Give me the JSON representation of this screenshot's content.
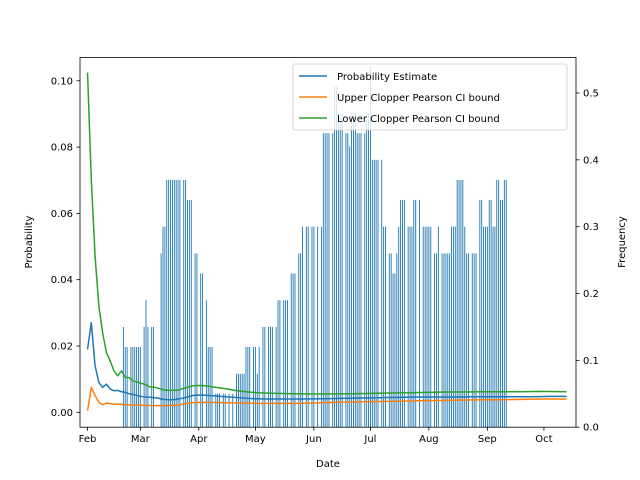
{
  "chart_data": {
    "type": "line+bar",
    "xlabel": "Date",
    "ylabel_left": "Probability",
    "ylabel_right": "Frequency",
    "x_ticks": [
      "Feb",
      "Mar",
      "Apr",
      "May",
      "Jun",
      "Jul",
      "Aug",
      "Sep",
      "Oct"
    ],
    "y_left_ticks": [
      "0.00",
      "0.02",
      "0.04",
      "0.06",
      "0.08",
      "0.10"
    ],
    "y_right_ticks": [
      "0.0",
      "0.1",
      "0.2",
      "0.3",
      "0.4",
      "0.5"
    ],
    "ylim_left": [
      -0.0045,
      0.107
    ],
    "ylim_right": [
      0,
      0.553
    ],
    "xlim_days": [
      -4,
      259
    ],
    "legend_position": "upper right",
    "series": [
      {
        "name": "Probability Estimate",
        "color": "#1f77b4",
        "points": [
          [
            0,
            0.019
          ],
          [
            2,
            0.027
          ],
          [
            4,
            0.014
          ],
          [
            6,
            0.009
          ],
          [
            8,
            0.0075
          ],
          [
            10,
            0.0085
          ],
          [
            12,
            0.007
          ],
          [
            14,
            0.0065
          ],
          [
            16,
            0.0066
          ],
          [
            18,
            0.0062
          ],
          [
            20,
            0.006
          ],
          [
            22,
            0.0056
          ],
          [
            25,
            0.0053
          ],
          [
            28,
            0.0048
          ],
          [
            31,
            0.0046
          ],
          [
            34,
            0.0045
          ],
          [
            37,
            0.0043
          ],
          [
            40,
            0.0039
          ],
          [
            44,
            0.0038
          ],
          [
            47,
            0.0039
          ],
          [
            50,
            0.0042
          ],
          [
            53,
            0.0046
          ],
          [
            56,
            0.0051
          ],
          [
            60,
            0.0052
          ],
          [
            64,
            0.0051
          ],
          [
            68,
            0.0049
          ],
          [
            73,
            0.0047
          ],
          [
            78,
            0.0045
          ],
          [
            83,
            0.0043
          ],
          [
            88,
            0.0041
          ],
          [
            95,
            0.004
          ],
          [
            105,
            0.004
          ],
          [
            115,
            0.004
          ],
          [
            125,
            0.0041
          ],
          [
            135,
            0.0042
          ],
          [
            145,
            0.0043
          ],
          [
            155,
            0.0044
          ],
          [
            165,
            0.0045
          ],
          [
            175,
            0.0046
          ],
          [
            185,
            0.0046
          ],
          [
            195,
            0.0046
          ],
          [
            205,
            0.0047
          ],
          [
            215,
            0.0047
          ],
          [
            225,
            0.0047
          ],
          [
            235,
            0.0047
          ],
          [
            245,
            0.0048
          ],
          [
            254,
            0.0048
          ]
        ]
      },
      {
        "name": "Upper Clopper Pearson CI bound",
        "color": "#ff7f0e",
        "points": [
          [
            0,
            0.0005
          ],
          [
            2,
            0.0075
          ],
          [
            4,
            0.005
          ],
          [
            6,
            0.003
          ],
          [
            8,
            0.0023
          ],
          [
            10,
            0.0028
          ],
          [
            12,
            0.0026
          ],
          [
            14,
            0.0024
          ],
          [
            16,
            0.0025
          ],
          [
            18,
            0.0024
          ],
          [
            20,
            0.0023
          ],
          [
            24,
            0.0022
          ],
          [
            30,
            0.0021
          ],
          [
            36,
            0.002
          ],
          [
            42,
            0.002
          ],
          [
            48,
            0.0022
          ],
          [
            52,
            0.0026
          ],
          [
            56,
            0.0029
          ],
          [
            60,
            0.003
          ],
          [
            66,
            0.003
          ],
          [
            72,
            0.0029
          ],
          [
            80,
            0.0028
          ],
          [
            90,
            0.0027
          ],
          [
            100,
            0.0027
          ],
          [
            110,
            0.0027
          ],
          [
            120,
            0.0028
          ],
          [
            130,
            0.003
          ],
          [
            140,
            0.0031
          ],
          [
            150,
            0.0032
          ],
          [
            160,
            0.0033
          ],
          [
            170,
            0.0034
          ],
          [
            180,
            0.0035
          ],
          [
            190,
            0.0036
          ],
          [
            200,
            0.0037
          ],
          [
            210,
            0.0038
          ],
          [
            220,
            0.0038
          ],
          [
            230,
            0.0039
          ],
          [
            240,
            0.004
          ],
          [
            254,
            0.004
          ]
        ]
      },
      {
        "name": "Lower Clopper Pearson CI bound",
        "color": "#2ca02c",
        "points": [
          [
            0,
            0.1025
          ],
          [
            2,
            0.07
          ],
          [
            4,
            0.047
          ],
          [
            6,
            0.032
          ],
          [
            8,
            0.024
          ],
          [
            10,
            0.018
          ],
          [
            12,
            0.0155
          ],
          [
            14,
            0.0125
          ],
          [
            16,
            0.011
          ],
          [
            18,
            0.0125
          ],
          [
            20,
            0.0105
          ],
          [
            22,
            0.0105
          ],
          [
            24,
            0.0095
          ],
          [
            26,
            0.0092
          ],
          [
            28,
            0.0088
          ],
          [
            30,
            0.0085
          ],
          [
            33,
            0.0077
          ],
          [
            36,
            0.0075
          ],
          [
            40,
            0.0068
          ],
          [
            44,
            0.0066
          ],
          [
            48,
            0.0067
          ],
          [
            52,
            0.0074
          ],
          [
            56,
            0.008
          ],
          [
            60,
            0.0081
          ],
          [
            64,
            0.0079
          ],
          [
            68,
            0.0075
          ],
          [
            72,
            0.0072
          ],
          [
            78,
            0.0066
          ],
          [
            84,
            0.0062
          ],
          [
            90,
            0.0059
          ],
          [
            100,
            0.0057
          ],
          [
            110,
            0.0056
          ],
          [
            120,
            0.0055
          ],
          [
            130,
            0.0055
          ],
          [
            140,
            0.0056
          ],
          [
            150,
            0.0057
          ],
          [
            160,
            0.0058
          ],
          [
            170,
            0.0059
          ],
          [
            180,
            0.006
          ],
          [
            190,
            0.0061
          ],
          [
            200,
            0.0061
          ],
          [
            210,
            0.0062
          ],
          [
            220,
            0.0062
          ],
          [
            230,
            0.0062
          ],
          [
            240,
            0.0063
          ],
          [
            254,
            0.0062
          ]
        ]
      }
    ],
    "frequency_bars": {
      "color": "#1f77b4",
      "values": [
        [
          19,
          0.15
        ],
        [
          20,
          0.12
        ],
        [
          21,
          0.12
        ],
        [
          23,
          0.12
        ],
        [
          24,
          0.12
        ],
        [
          25,
          0.12
        ],
        [
          26,
          0.12
        ],
        [
          27,
          0.12
        ],
        [
          28,
          0.12
        ],
        [
          30,
          0.15
        ],
        [
          31,
          0.19
        ],
        [
          32,
          0.15
        ],
        [
          34,
          0.15
        ],
        [
          35,
          0.15
        ],
        [
          39,
          0.26
        ],
        [
          40,
          0.3
        ],
        [
          41,
          0.3
        ],
        [
          42,
          0.37
        ],
        [
          43,
          0.37
        ],
        [
          44,
          0.37
        ],
        [
          45,
          0.37
        ],
        [
          46,
          0.37
        ],
        [
          47,
          0.37
        ],
        [
          48,
          0.37
        ],
        [
          49,
          0.37
        ],
        [
          51,
          0.37
        ],
        [
          52,
          0.37
        ],
        [
          53,
          0.34
        ],
        [
          54,
          0.34
        ],
        [
          55,
          0.34
        ],
        [
          57,
          0.26
        ],
        [
          58,
          0.26
        ],
        [
          60,
          0.23
        ],
        [
          61,
          0.23
        ],
        [
          63,
          0.19
        ],
        [
          64,
          0.12
        ],
        [
          65,
          0.12
        ],
        [
          66,
          0.12
        ],
        [
          68,
          0.05
        ],
        [
          69,
          0.05
        ],
        [
          70,
          0.05
        ],
        [
          72,
          0.05
        ],
        [
          73,
          0.05
        ],
        [
          75,
          0.05
        ],
        [
          77,
          0.05
        ],
        [
          79,
          0.08
        ],
        [
          80,
          0.08
        ],
        [
          81,
          0.08
        ],
        [
          82,
          0.08
        ],
        [
          83,
          0.08
        ],
        [
          84,
          0.12
        ],
        [
          85,
          0.12
        ],
        [
          86,
          0.12
        ],
        [
          88,
          0.12
        ],
        [
          89,
          0.12
        ],
        [
          90,
          0.08
        ],
        [
          91,
          0.12
        ],
        [
          93,
          0.15
        ],
        [
          94,
          0.15
        ],
        [
          96,
          0.15
        ],
        [
          97,
          0.15
        ],
        [
          98,
          0.15
        ],
        [
          100,
          0.15
        ],
        [
          101,
          0.19
        ],
        [
          102,
          0.19
        ],
        [
          104,
          0.19
        ],
        [
          105,
          0.19
        ],
        [
          106,
          0.19
        ],
        [
          108,
          0.23
        ],
        [
          109,
          0.23
        ],
        [
          110,
          0.23
        ],
        [
          112,
          0.26
        ],
        [
          113,
          0.26
        ],
        [
          114,
          0.3
        ],
        [
          116,
          0.3
        ],
        [
          117,
          0.3
        ],
        [
          119,
          0.3
        ],
        [
          120,
          0.3
        ],
        [
          122,
          0.3
        ],
        [
          124,
          0.3
        ],
        [
          125,
          0.44
        ],
        [
          126,
          0.44
        ],
        [
          127,
          0.44
        ],
        [
          128,
          0.44
        ],
        [
          130,
          0.44
        ],
        [
          131,
          0.51
        ],
        [
          132,
          0.51
        ],
        [
          133,
          0.47
        ],
        [
          134,
          0.47
        ],
        [
          135,
          0.47
        ],
        [
          137,
          0.44
        ],
        [
          138,
          0.44
        ],
        [
          139,
          0.42
        ],
        [
          140,
          0.47
        ],
        [
          141,
          0.47
        ],
        [
          142,
          0.47
        ],
        [
          143,
          0.44
        ],
        [
          144,
          0.44
        ],
        [
          145,
          0.44
        ],
        [
          147,
          0.44
        ],
        [
          148,
          0.47
        ],
        [
          149,
          0.47
        ],
        [
          150,
          0.54
        ],
        [
          151,
          0.4
        ],
        [
          152,
          0.4
        ],
        [
          153,
          0.4
        ],
        [
          154,
          0.4
        ],
        [
          156,
          0.4
        ],
        [
          157,
          0.3
        ],
        [
          158,
          0.3
        ],
        [
          160,
          0.26
        ],
        [
          161,
          0.26
        ],
        [
          162,
          0.23
        ],
        [
          163,
          0.23
        ],
        [
          164,
          0.26
        ],
        [
          165,
          0.3
        ],
        [
          166,
          0.34
        ],
        [
          167,
          0.34
        ],
        [
          168,
          0.34
        ],
        [
          170,
          0.3
        ],
        [
          171,
          0.3
        ],
        [
          172,
          0.3
        ],
        [
          173,
          0.34
        ],
        [
          174,
          0.34
        ],
        [
          176,
          0.34
        ],
        [
          178,
          0.3
        ],
        [
          179,
          0.3
        ],
        [
          180,
          0.3
        ],
        [
          181,
          0.3
        ],
        [
          182,
          0.3
        ],
        [
          184,
          0.26
        ],
        [
          185,
          0.26
        ],
        [
          186,
          0.3
        ],
        [
          188,
          0.26
        ],
        [
          189,
          0.26
        ],
        [
          190,
          0.26
        ],
        [
          191,
          0.26
        ],
        [
          192,
          0.26
        ],
        [
          193,
          0.3
        ],
        [
          194,
          0.3
        ],
        [
          195,
          0.3
        ],
        [
          196,
          0.37
        ],
        [
          197,
          0.37
        ],
        [
          198,
          0.37
        ],
        [
          199,
          0.37
        ],
        [
          200,
          0.3
        ],
        [
          201,
          0.26
        ],
        [
          202,
          0.26
        ],
        [
          204,
          0.26
        ],
        [
          205,
          0.26
        ],
        [
          206,
          0.26
        ],
        [
          208,
          0.34
        ],
        [
          209,
          0.34
        ],
        [
          210,
          0.3
        ],
        [
          211,
          0.3
        ],
        [
          212,
          0.3
        ],
        [
          213,
          0.34
        ],
        [
          214,
          0.34
        ],
        [
          215,
          0.3
        ],
        [
          216,
          0.3
        ],
        [
          217,
          0.37
        ],
        [
          218,
          0.37
        ],
        [
          219,
          0.34
        ],
        [
          220,
          0.34
        ],
        [
          221,
          0.37
        ],
        [
          222,
          0.37
        ]
      ]
    }
  }
}
